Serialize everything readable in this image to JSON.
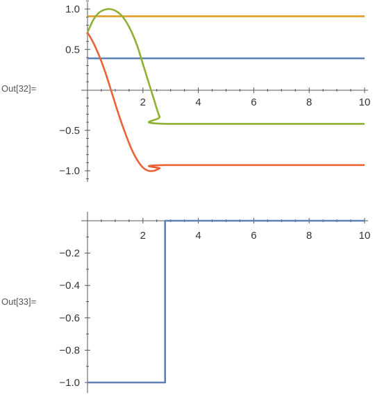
{
  "cells": [
    {
      "out_label": "Out[32]="
    },
    {
      "out_label": "Out[33]="
    }
  ],
  "colors": {
    "axis": "#555555",
    "tick_text": "#333333",
    "blue": "#5E81B5",
    "orange": "#E19C24",
    "green": "#8FB032",
    "red": "#EB6235"
  },
  "chart_data": [
    {
      "type": "line",
      "title": "",
      "xlabel": "",
      "ylabel": "",
      "xlim": [
        0,
        10
      ],
      "ylim": [
        -1.2,
        1.1
      ],
      "x_ticks": [
        2,
        4,
        6,
        8,
        10
      ],
      "x_tick_labels": [
        "2",
        "4",
        "6",
        "8",
        "10"
      ],
      "y_ticks": [
        1.0,
        0.5,
        -0.5,
        -1.0
      ],
      "y_tick_labels": [
        "1.0",
        "0.5",
        "−0.5",
        "−1.0"
      ],
      "grid": false,
      "series": [
        {
          "color": "#5E81B5",
          "points": [
            [
              0,
              0.39
            ],
            [
              10,
              0.39
            ]
          ]
        },
        {
          "color": "#E19C24",
          "points": [
            [
              0,
              0.91
            ],
            [
              10,
              0.91
            ]
          ]
        },
        {
          "color": "#8FB032",
          "points": [
            [
              0,
              0.71
            ],
            [
              0.2,
              0.86
            ],
            [
              0.4,
              0.95
            ],
            [
              0.6,
              0.99
            ],
            [
              0.8,
              1.0
            ],
            [
              1.0,
              0.98
            ],
            [
              1.2,
              0.93
            ],
            [
              1.4,
              0.84
            ],
            [
              1.6,
              0.71
            ],
            [
              1.8,
              0.54
            ],
            [
              2.0,
              0.32
            ],
            [
              2.2,
              0.1
            ],
            [
              2.4,
              -0.12
            ],
            [
              2.6,
              -0.33
            ],
            [
              2.8,
              -0.42
            ],
            [
              10,
              -0.42
            ]
          ]
        },
        {
          "color": "#EB6235",
          "points": [
            [
              0,
              0.71
            ],
            [
              0.2,
              0.59
            ],
            [
              0.4,
              0.44
            ],
            [
              0.6,
              0.26
            ],
            [
              0.8,
              0.05
            ],
            [
              1.0,
              -0.17
            ],
            [
              1.2,
              -0.38
            ],
            [
              1.4,
              -0.57
            ],
            [
              1.6,
              -0.74
            ],
            [
              1.8,
              -0.87
            ],
            [
              2.0,
              -0.96
            ],
            [
              2.2,
              -1.0
            ],
            [
              2.4,
              -1.0
            ],
            [
              2.6,
              -0.97
            ],
            [
              2.8,
              -0.93
            ],
            [
              10,
              -0.93
            ]
          ]
        }
      ]
    },
    {
      "type": "line",
      "title": "",
      "xlabel": "",
      "ylabel": "",
      "xlim": [
        0,
        10
      ],
      "ylim": [
        -1.02,
        0.0
      ],
      "x_ticks": [
        2,
        4,
        6,
        8,
        10
      ],
      "x_tick_labels": [
        "2",
        "4",
        "6",
        "8",
        "10"
      ],
      "y_ticks": [
        -0.2,
        -0.4,
        -0.6,
        -0.8,
        -1.0
      ],
      "y_tick_labels": [
        "−0.2",
        "−0.4",
        "−0.6",
        "−0.8",
        "−1.0"
      ],
      "grid": false,
      "series": [
        {
          "color": "#5E81B5",
          "points": [
            [
              0,
              -1.0
            ],
            [
              2.8,
              -1.0
            ],
            [
              2.8,
              0.0
            ],
            [
              10,
              0.0
            ]
          ]
        }
      ]
    }
  ]
}
